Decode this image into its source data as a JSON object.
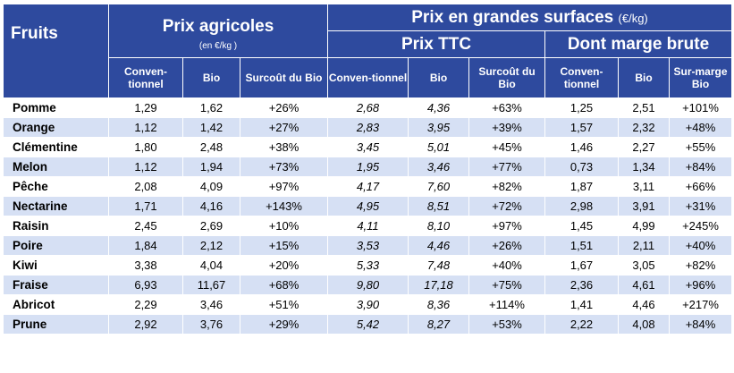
{
  "header": {
    "fruits": "Fruits",
    "agri_title": "Prix agricoles",
    "agri_unit": "(en €/kg )",
    "gs_title": "Prix en grandes surfaces",
    "gs_unit": "(€/kg)",
    "ttc_title": "Prix TTC",
    "marge_title": "Dont marge brute",
    "agri_cols": [
      "Conven-tionnel",
      "Bio",
      "Surcoût du Bio"
    ],
    "ttc_cols": [
      "Conven-tionnel",
      "Bio",
      "Surcoût du Bio"
    ],
    "marge_cols": [
      "Conven-tionnel",
      "Bio",
      "Sur-marge Bio"
    ]
  },
  "rows": [
    {
      "fruit": "Pomme",
      "v": [
        "1,29",
        "1,62",
        "+26%",
        "2,68",
        "4,36",
        "+63%",
        "1,25",
        "2,51",
        "+101%"
      ]
    },
    {
      "fruit": "Orange",
      "v": [
        "1,12",
        "1,42",
        "+27%",
        "2,83",
        "3,95",
        "+39%",
        "1,57",
        "2,32",
        "+48%"
      ]
    },
    {
      "fruit": "Clémentine",
      "v": [
        "1,80",
        "2,48",
        "+38%",
        "3,45",
        "5,01",
        "+45%",
        "1,46",
        "2,27",
        "+55%"
      ]
    },
    {
      "fruit": "Melon",
      "v": [
        "1,12",
        "1,94",
        "+73%",
        "1,95",
        "3,46",
        "+77%",
        "0,73",
        "1,34",
        "+84%"
      ]
    },
    {
      "fruit": "Pêche",
      "v": [
        "2,08",
        "4,09",
        "+97%",
        "4,17",
        "7,60",
        "+82%",
        "1,87",
        "3,11",
        "+66%"
      ]
    },
    {
      "fruit": "Nectarine",
      "v": [
        "1,71",
        "4,16",
        "+143%",
        "4,95",
        "8,51",
        "+72%",
        "2,98",
        "3,91",
        "+31%"
      ]
    },
    {
      "fruit": "Raisin",
      "v": [
        "2,45",
        "2,69",
        "+10%",
        "4,11",
        "8,10",
        "+97%",
        "1,45",
        "4,99",
        "+245%"
      ]
    },
    {
      "fruit": "Poire",
      "v": [
        "1,84",
        "2,12",
        "+15%",
        "3,53",
        "4,46",
        "+26%",
        "1,51",
        "2,11",
        "+40%"
      ]
    },
    {
      "fruit": "Kiwi",
      "v": [
        "3,38",
        "4,04",
        "+20%",
        "5,33",
        "7,48",
        "+40%",
        "1,67",
        "3,05",
        "+82%"
      ]
    },
    {
      "fruit": "Fraise",
      "v": [
        "6,93",
        "11,67",
        "+68%",
        "9,80",
        "17,18",
        "+75%",
        "2,36",
        "4,61",
        "+96%"
      ]
    },
    {
      "fruit": "Abricot",
      "v": [
        "2,29",
        "3,46",
        "+51%",
        "3,90",
        "8,36",
        "+114%",
        "1,41",
        "4,46",
        "+217%"
      ]
    },
    {
      "fruit": "Prune",
      "v": [
        "2,92",
        "3,76",
        "+29%",
        "5,42",
        "8,27",
        "+53%",
        "2,22",
        "4,08",
        "+84%"
      ]
    }
  ],
  "colors": {
    "header_bg": "#2e4a9e",
    "alt_row": "#d6e0f4"
  }
}
